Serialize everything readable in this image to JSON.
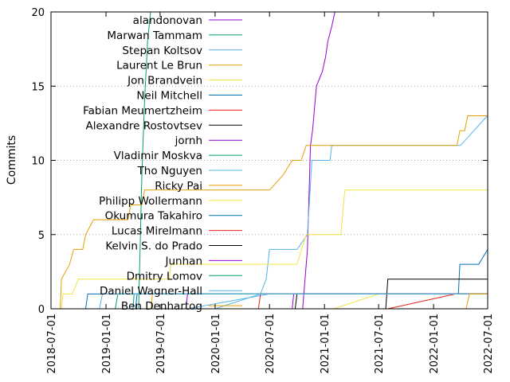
{
  "chart_data": {
    "type": "line",
    "ylabel": "Commits",
    "ylim": [
      0,
      20
    ],
    "xlim": [
      "2018-07-01",
      "2022-07-01"
    ],
    "yticks": [
      "0",
      "5",
      "10",
      "15",
      "20"
    ],
    "xticks": [
      "2018-07-01",
      "2019-01-01",
      "2019-07-01",
      "2020-01-01",
      "2020-07-01",
      "2021-01-01",
      "2021-07-01",
      "2022-01-01",
      "2022-07-01"
    ],
    "grid": "horizontal-dotted",
    "legend_position": "top-left",
    "series": [
      {
        "name": "alandonovan",
        "color": "#9400d3",
        "points": [
          [
            "2020-10-20",
            0
          ],
          [
            "2020-11-05",
            4
          ],
          [
            "2020-11-15",
            11
          ],
          [
            "2020-11-22",
            12
          ],
          [
            "2020-12-05",
            15
          ],
          [
            "2020-12-25",
            16
          ],
          [
            "2021-01-05",
            17
          ],
          [
            "2021-01-12",
            18
          ],
          [
            "2021-01-25",
            19
          ],
          [
            "2021-02-05",
            20
          ]
        ]
      },
      {
        "name": "Marwan Tammam",
        "color": "#009e73",
        "points": [
          [
            "2019-04-20",
            0
          ],
          [
            "2019-04-25",
            4
          ],
          [
            "2019-05-01",
            9
          ],
          [
            "2019-05-10",
            14
          ],
          [
            "2019-05-20",
            18
          ],
          [
            "2019-05-30",
            20
          ]
        ]
      },
      {
        "name": "Stepan Koltsov",
        "color": "#56b4e9",
        "points": [
          [
            "2020-01-01",
            0
          ],
          [
            "2020-06-01",
            1
          ],
          [
            "2020-06-20",
            2
          ],
          [
            "2020-07-01",
            4
          ],
          [
            "2020-10-01",
            4
          ],
          [
            "2020-11-05",
            5
          ],
          [
            "2020-11-20",
            10
          ],
          [
            "2021-01-20",
            10
          ],
          [
            "2021-01-25",
            11
          ],
          [
            "2022-04-01",
            11
          ],
          [
            "2022-06-30",
            13
          ]
        ]
      },
      {
        "name": "Laurent Le Brun",
        "color": "#e69f00",
        "points": [
          [
            "2018-08-01",
            0
          ],
          [
            "2018-08-05",
            2
          ],
          [
            "2018-09-01",
            3
          ],
          [
            "2018-09-15",
            4
          ],
          [
            "2018-10-15",
            4
          ],
          [
            "2018-10-25",
            5
          ],
          [
            "2018-11-20",
            6
          ],
          [
            "2019-03-15",
            6
          ],
          [
            "2019-03-25",
            7
          ],
          [
            "2019-05-01",
            7
          ],
          [
            "2019-05-10",
            8
          ],
          [
            "2020-07-01",
            8
          ],
          [
            "2020-08-15",
            9
          ],
          [
            "2020-09-15",
            10
          ],
          [
            "2020-10-15",
            10
          ],
          [
            "2020-11-01",
            11
          ],
          [
            "2022-03-20",
            11
          ],
          [
            "2022-03-30",
            12
          ],
          [
            "2022-04-15",
            12
          ],
          [
            "2022-04-25",
            13
          ],
          [
            "2022-07-01",
            13
          ]
        ]
      },
      {
        "name": "Jon Brandvein",
        "color": "#f0e442",
        "points": [
          [
            "2018-08-05",
            0
          ],
          [
            "2018-08-10",
            1
          ],
          [
            "2018-09-10",
            1
          ],
          [
            "2018-10-01",
            2
          ],
          [
            "2019-08-01",
            2
          ],
          [
            "2019-08-05",
            3
          ],
          [
            "2020-10-01",
            3
          ],
          [
            "2020-11-01",
            5
          ],
          [
            "2021-02-25",
            5
          ],
          [
            "2021-03-10",
            8
          ],
          [
            "2022-07-01",
            8
          ]
        ]
      },
      {
        "name": "Neil Mitchell",
        "color": "#0072b2",
        "points": [
          [
            "2018-10-25",
            0
          ],
          [
            "2018-11-01",
            1
          ],
          [
            "2022-03-25",
            1
          ],
          [
            "2022-03-30",
            3
          ],
          [
            "2022-06-01",
            3
          ],
          [
            "2022-07-01",
            4
          ]
        ]
      },
      {
        "name": "Fabian Meumertzheim",
        "color": "#e51e10",
        "points": [
          [
            "2021-08-01",
            0
          ],
          [
            "2022-03-15",
            1
          ],
          [
            "2022-07-01",
            1
          ]
        ]
      },
      {
        "name": "Alexandre Rostovtsev",
        "color": "#000000",
        "points": [
          [
            "2021-07-25",
            0
          ],
          [
            "2021-08-01",
            2
          ],
          [
            "2022-07-01",
            2
          ]
        ]
      },
      {
        "name": "jornh",
        "color": "#9400d3",
        "points": [
          [
            "2019-09-25",
            0
          ],
          [
            "2019-10-01",
            1
          ],
          [
            "2022-07-01",
            1
          ]
        ]
      },
      {
        "name": "Vladimir Moskva",
        "color": "#009e73",
        "points": [
          [
            "2019-04-01",
            0
          ],
          [
            "2019-04-05",
            1
          ],
          [
            "2022-07-01",
            1
          ]
        ]
      },
      {
        "name": "Tho Nguyen",
        "color": "#56b4e9",
        "points": [
          [
            "2019-10-01",
            0
          ],
          [
            "2020-07-01",
            1
          ],
          [
            "2022-07-01",
            1
          ]
        ]
      },
      {
        "name": "Ricky Pai",
        "color": "#e69f00",
        "points": [
          [
            "2019-06-01",
            0
          ],
          [
            "2019-06-05",
            1
          ],
          [
            "2022-07-01",
            1
          ]
        ]
      },
      {
        "name": "Philipp Wollermann",
        "color": "#f0e442",
        "points": [
          [
            "2021-02-01",
            0
          ],
          [
            "2021-07-01",
            1
          ],
          [
            "2022-07-01",
            1
          ]
        ]
      },
      {
        "name": "Okumura Takahiro",
        "color": "#0072b2",
        "points": [
          [
            "2019-04-10",
            0
          ],
          [
            "2019-04-15",
            1
          ],
          [
            "2022-07-01",
            1
          ]
        ]
      },
      {
        "name": "Lucas Mirelmann",
        "color": "#e51e10",
        "points": [
          [
            "2020-05-25",
            0
          ],
          [
            "2020-06-01",
            1
          ],
          [
            "2022-07-01",
            1
          ]
        ]
      },
      {
        "name": "Kelvin S. do Prado",
        "color": "#000000",
        "points": [
          [
            "2020-09-25",
            0
          ],
          [
            "2020-10-01",
            1
          ],
          [
            "2022-07-01",
            1
          ]
        ]
      },
      {
        "name": "Junhan",
        "color": "#9400d3",
        "points": [
          [
            "2020-09-15",
            0
          ],
          [
            "2020-09-20",
            1
          ],
          [
            "2022-07-01",
            1
          ]
        ]
      },
      {
        "name": "Dmitry Lomov",
        "color": "#009e73",
        "points": [
          [
            "2019-02-01",
            0
          ],
          [
            "2019-02-10",
            1
          ],
          [
            "2022-07-01",
            1
          ]
        ]
      },
      {
        "name": "Daniel Wagner-Hall",
        "color": "#56b4e9",
        "points": [
          [
            "2018-12-10",
            0
          ],
          [
            "2018-12-20",
            1
          ],
          [
            "2022-07-01",
            1
          ]
        ]
      },
      {
        "name": "Ben Denhartog",
        "color": "#e69f00",
        "points": [
          [
            "2022-04-20",
            0
          ],
          [
            "2022-05-01",
            1
          ],
          [
            "2022-07-01",
            1
          ]
        ]
      }
    ]
  }
}
